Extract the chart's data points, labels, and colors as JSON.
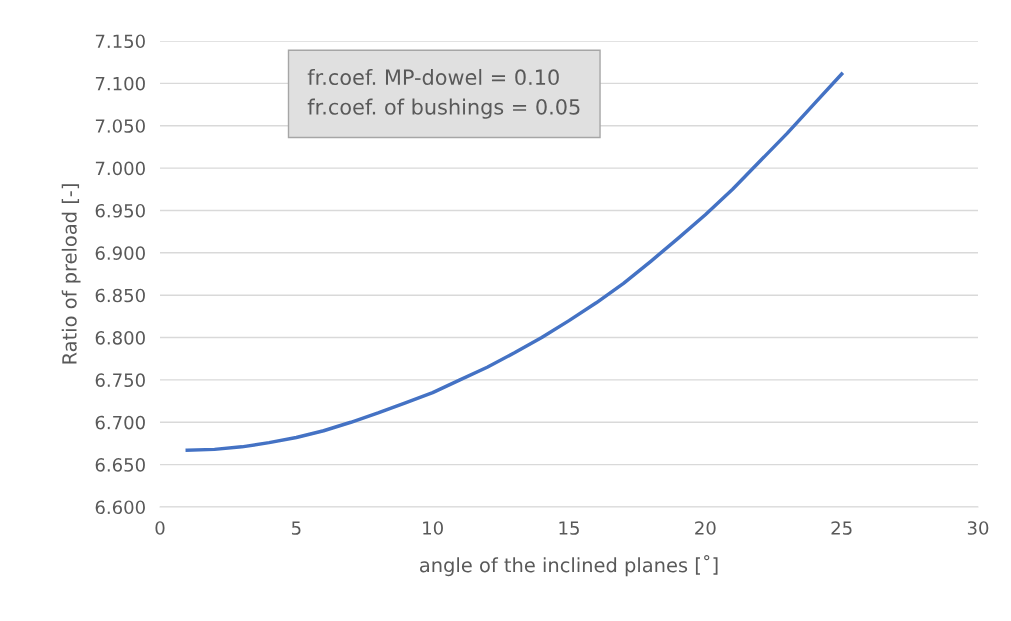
{
  "chart_data": {
    "type": "line",
    "xlabel": "angle of the inclined planes [˚]",
    "ylabel": "Ratio of preload [-]",
    "annotations": [
      "fr.coef. MP-dowel = 0.10\nfr.coef. of bushings = 0.05"
    ],
    "x": [
      1,
      2,
      3,
      4,
      5,
      6,
      7,
      8,
      9,
      10,
      11,
      12,
      13,
      14,
      15,
      16,
      17,
      18,
      19,
      20,
      21,
      22,
      23,
      24,
      25
    ],
    "series": [
      {
        "color": "#4472c4",
        "values": [
          6.667,
          6.668,
          6.671,
          6.676,
          6.682,
          6.69,
          6.7,
          6.711,
          6.723,
          6.735,
          6.75,
          6.765,
          6.782,
          6.8,
          6.82,
          6.841,
          6.864,
          6.89,
          6.917,
          6.945,
          6.975,
          7.008,
          7.041,
          7.076,
          7.111
        ]
      }
    ],
    "xlim": [
      0,
      30
    ],
    "xticks": [
      0,
      5,
      10,
      15,
      20,
      25,
      30
    ],
    "ylim": [
      6.6,
      7.15
    ],
    "yticks": [
      {
        "value": 6.6,
        "label": "6.600"
      },
      {
        "value": 6.65,
        "label": "6.650"
      },
      {
        "value": 6.7,
        "label": "6.700"
      },
      {
        "value": 6.75,
        "label": "6.750"
      },
      {
        "value": 6.8,
        "label": "6.800"
      },
      {
        "value": 6.85,
        "label": "6.850"
      },
      {
        "value": 6.9,
        "label": "6.900"
      },
      {
        "value": 6.95,
        "label": "6.950"
      },
      {
        "value": 7.0,
        "label": "7.000"
      },
      {
        "value": 7.05,
        "label": "7.050"
      },
      {
        "value": 7.1,
        "label": "7.100"
      },
      {
        "value": 7.15,
        "label": "7.150"
      }
    ],
    "grid": "y",
    "marker": "none",
    "line_style": "solid"
  }
}
